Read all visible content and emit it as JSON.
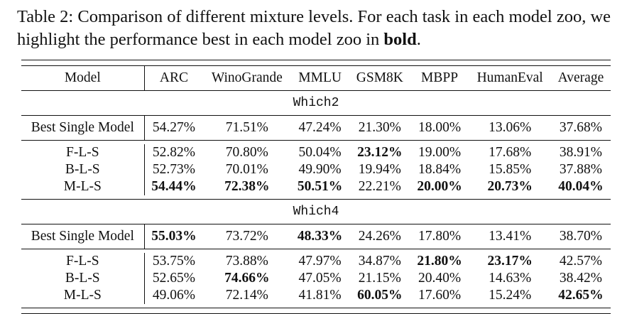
{
  "caption": {
    "label": "Table 2:",
    "text": " Comparison of different mixture levels. For each task in each model zoo, we highlight the performance best in each model zoo in ",
    "bold_word": "bold",
    "end": "."
  },
  "columns": [
    "Model",
    "ARC",
    "WinoGrande",
    "MMLU",
    "GSM8K",
    "MBPP",
    "HumanEval",
    "Average"
  ],
  "sections": [
    {
      "title": "Which2",
      "single": {
        "model": "Best Single Model",
        "values": [
          "54.27%",
          "71.51%",
          "47.24%",
          "21.30%",
          "18.00%",
          "13.06%",
          "37.68%"
        ],
        "bold": []
      },
      "rows": [
        {
          "model": "F-L-S",
          "values": [
            "52.82%",
            "70.80%",
            "50.04%",
            "23.12%",
            "19.00%",
            "17.68%",
            "38.91%"
          ],
          "bold": [
            3
          ]
        },
        {
          "model": "B-L-S",
          "values": [
            "52.73%",
            "70.01%",
            "49.90%",
            "19.94%",
            "18.84%",
            "15.85%",
            "37.88%"
          ],
          "bold": []
        },
        {
          "model": "M-L-S",
          "values": [
            "54.44%",
            "72.38%",
            "50.51%",
            "22.21%",
            "20.00%",
            "20.73%",
            "40.04%"
          ],
          "bold": [
            0,
            1,
            2,
            4,
            5,
            6
          ]
        }
      ]
    },
    {
      "title": "Which4",
      "single": {
        "model": "Best Single Model",
        "values": [
          "55.03%",
          "73.72%",
          "48.33%",
          "24.26%",
          "17.80%",
          "13.41%",
          "38.70%"
        ],
        "bold": [
          0,
          2
        ]
      },
      "rows": [
        {
          "model": "F-L-S",
          "values": [
            "53.75%",
            "73.88%",
            "47.97%",
            "34.87%",
            "21.80%",
            "23.17%",
            "42.57%"
          ],
          "bold": [
            4,
            5
          ]
        },
        {
          "model": "B-L-S",
          "values": [
            "52.65%",
            "74.66%",
            "47.05%",
            "21.15%",
            "20.40%",
            "14.63%",
            "38.42%"
          ],
          "bold": [
            1
          ]
        },
        {
          "model": "M-L-S",
          "values": [
            "49.06%",
            "72.14%",
            "41.81%",
            "60.05%",
            "17.60%",
            "15.24%",
            "42.65%"
          ],
          "bold": [
            3,
            6
          ]
        }
      ]
    }
  ]
}
